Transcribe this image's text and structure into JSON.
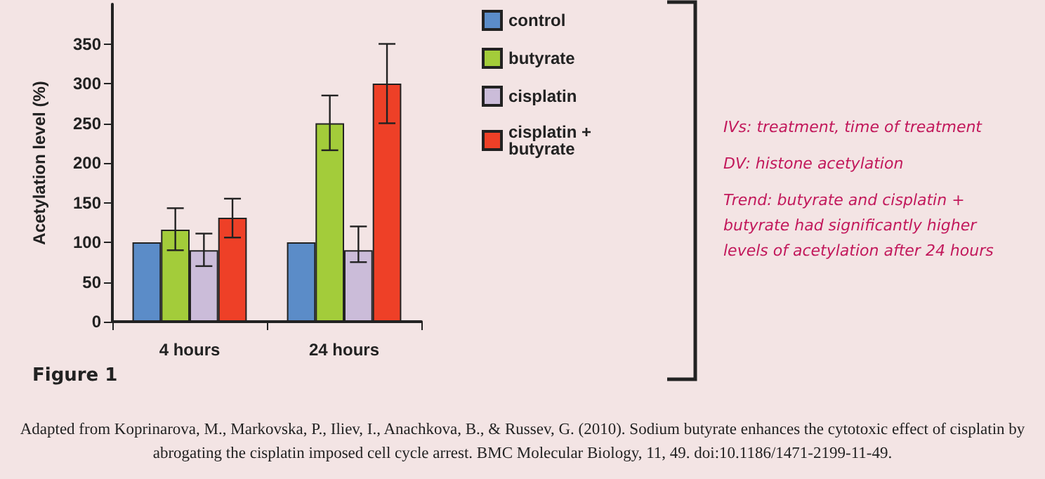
{
  "chart_data": {
    "type": "bar",
    "title": "Figure 1",
    "ylabel": "Acetylation level (%)",
    "categories": [
      "4 hours",
      "24 hours"
    ],
    "series": [
      {
        "name": "control",
        "color": "#5b8cc8",
        "values": [
          100,
          100
        ]
      },
      {
        "name": "butyrate",
        "color": "#a3cc3a",
        "values": [
          116,
          250
        ],
        "errors": [
          [
            90,
            143
          ],
          [
            216,
            285
          ]
        ]
      },
      {
        "name": "cisplatin",
        "color": "#cbbcd9",
        "values": [
          90,
          90
        ],
        "errors": [
          [
            70,
            111
          ],
          [
            75,
            120
          ]
        ]
      },
      {
        "name": "cisplatin + butyrate",
        "color": "#ee4027",
        "values": [
          131,
          300
        ],
        "errors": [
          [
            106,
            155
          ],
          [
            250,
            350
          ]
        ]
      }
    ],
    "ylim": [
      0,
      400
    ],
    "yticks": [
      0,
      50,
      100,
      150,
      200,
      250,
      300,
      350
    ],
    "grid": false,
    "legend": "right",
    "annotations": [
      "IVs: treatment, time of treatment",
      "DV: histone acetylation",
      "Trend: butyrate and cisplatin + butyrate had significantly higher levels of acetylation after 24 hours",
      "Adapted from Koprinarova, M., Markovska, P., Iliev, I., Anachkova, B., & Russev, G. (2010). Sodium butyrate enhances the cytotoxic effect of cisplatin by abrogating the cisplatin imposed cell cycle arrest. BMC Molecular Biology, 11, 49. doi:10.1186/1471-2199-11-49."
    ]
  }
}
